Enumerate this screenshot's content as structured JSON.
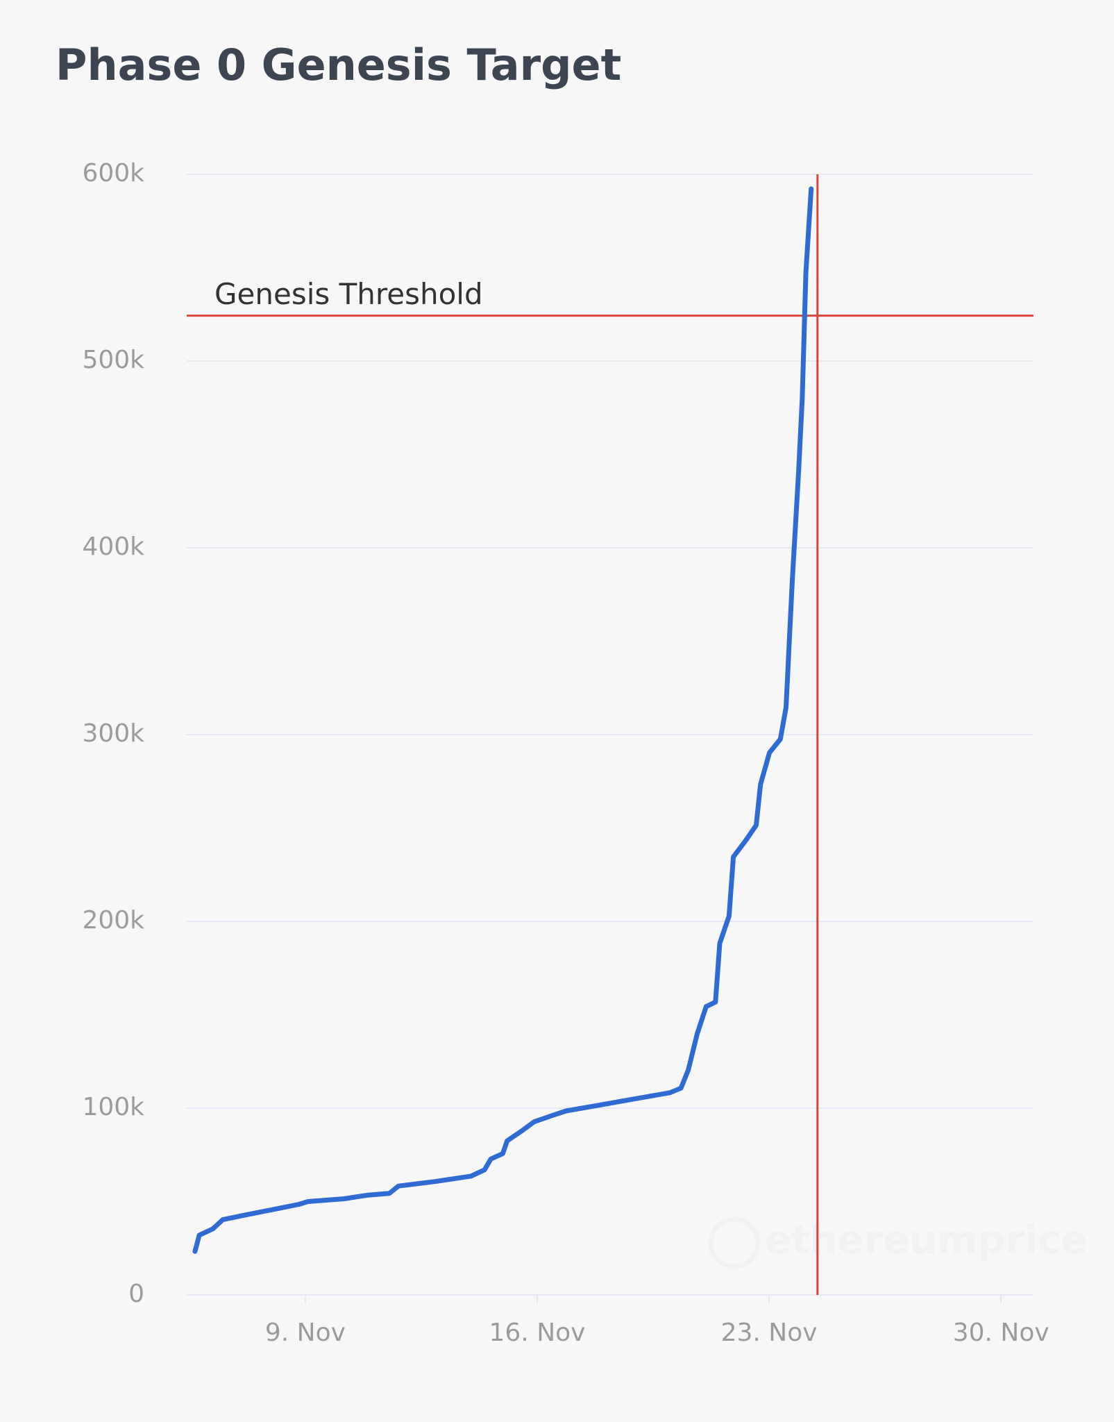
{
  "chart_data": {
    "type": "line",
    "title": "Phase 0 Genesis Target",
    "watermark": "ethereumprice",
    "x": [
      5.67,
      5.8,
      6.21,
      6.51,
      7.17,
      7.99,
      8.81,
      9.08,
      10.17,
      10.86,
      11.54,
      11.81,
      12.91,
      14.0,
      14.41,
      14.6,
      14.96,
      15.09,
      15.5,
      15.91,
      16.46,
      16.87,
      17.96,
      18.92,
      20.01,
      20.34,
      20.56,
      20.83,
      21.1,
      21.38,
      21.51,
      21.79,
      21.92,
      22.33,
      22.61,
      22.74,
      23.01,
      23.34,
      23.51,
      23.7,
      23.89,
      24.0,
      24.11,
      24.27
    ],
    "series": [
      {
        "color": "#2f6bd3",
        "values": [
          23300,
          32000,
          35400,
          40300,
          42700,
          45600,
          48500,
          50000,
          51500,
          53400,
          54400,
          58300,
          60700,
          63600,
          67000,
          72800,
          75700,
          82500,
          87400,
          92700,
          96100,
          98500,
          101900,
          104900,
          108300,
          110700,
          120400,
          139800,
          154400,
          156800,
          188300,
          202900,
          234500,
          244200,
          251500,
          273300,
          290300,
          297600,
          314600,
          382500,
          440800,
          479600,
          547600,
          592200
        ]
      }
    ],
    "xlim": [
      5.42,
      30.98
    ],
    "xticks": [
      {
        "value": 9,
        "label": "9. Nov"
      },
      {
        "value": 16,
        "label": "16. Nov"
      },
      {
        "value": 23,
        "label": "23. Nov"
      },
      {
        "value": 30,
        "label": "30. Nov"
      }
    ],
    "ylim": [
      0,
      600000
    ],
    "yticks": [
      0,
      {
        "value": 100000,
        "label": "100k"
      },
      {
        "value": 200000,
        "label": "200k"
      },
      {
        "value": 300000,
        "label": "300k"
      },
      {
        "value": 400000,
        "label": "400k"
      },
      {
        "value": 500000,
        "label": "500k"
      },
      {
        "value": 600000,
        "label": "600k"
      }
    ],
    "grid": true,
    "hlines": [
      {
        "label": "Genesis Threshold",
        "value": 524288,
        "color": "#d9453b"
      }
    ],
    "vlines": [
      {
        "value": 24.46,
        "color": "#d9453b"
      }
    ]
  }
}
